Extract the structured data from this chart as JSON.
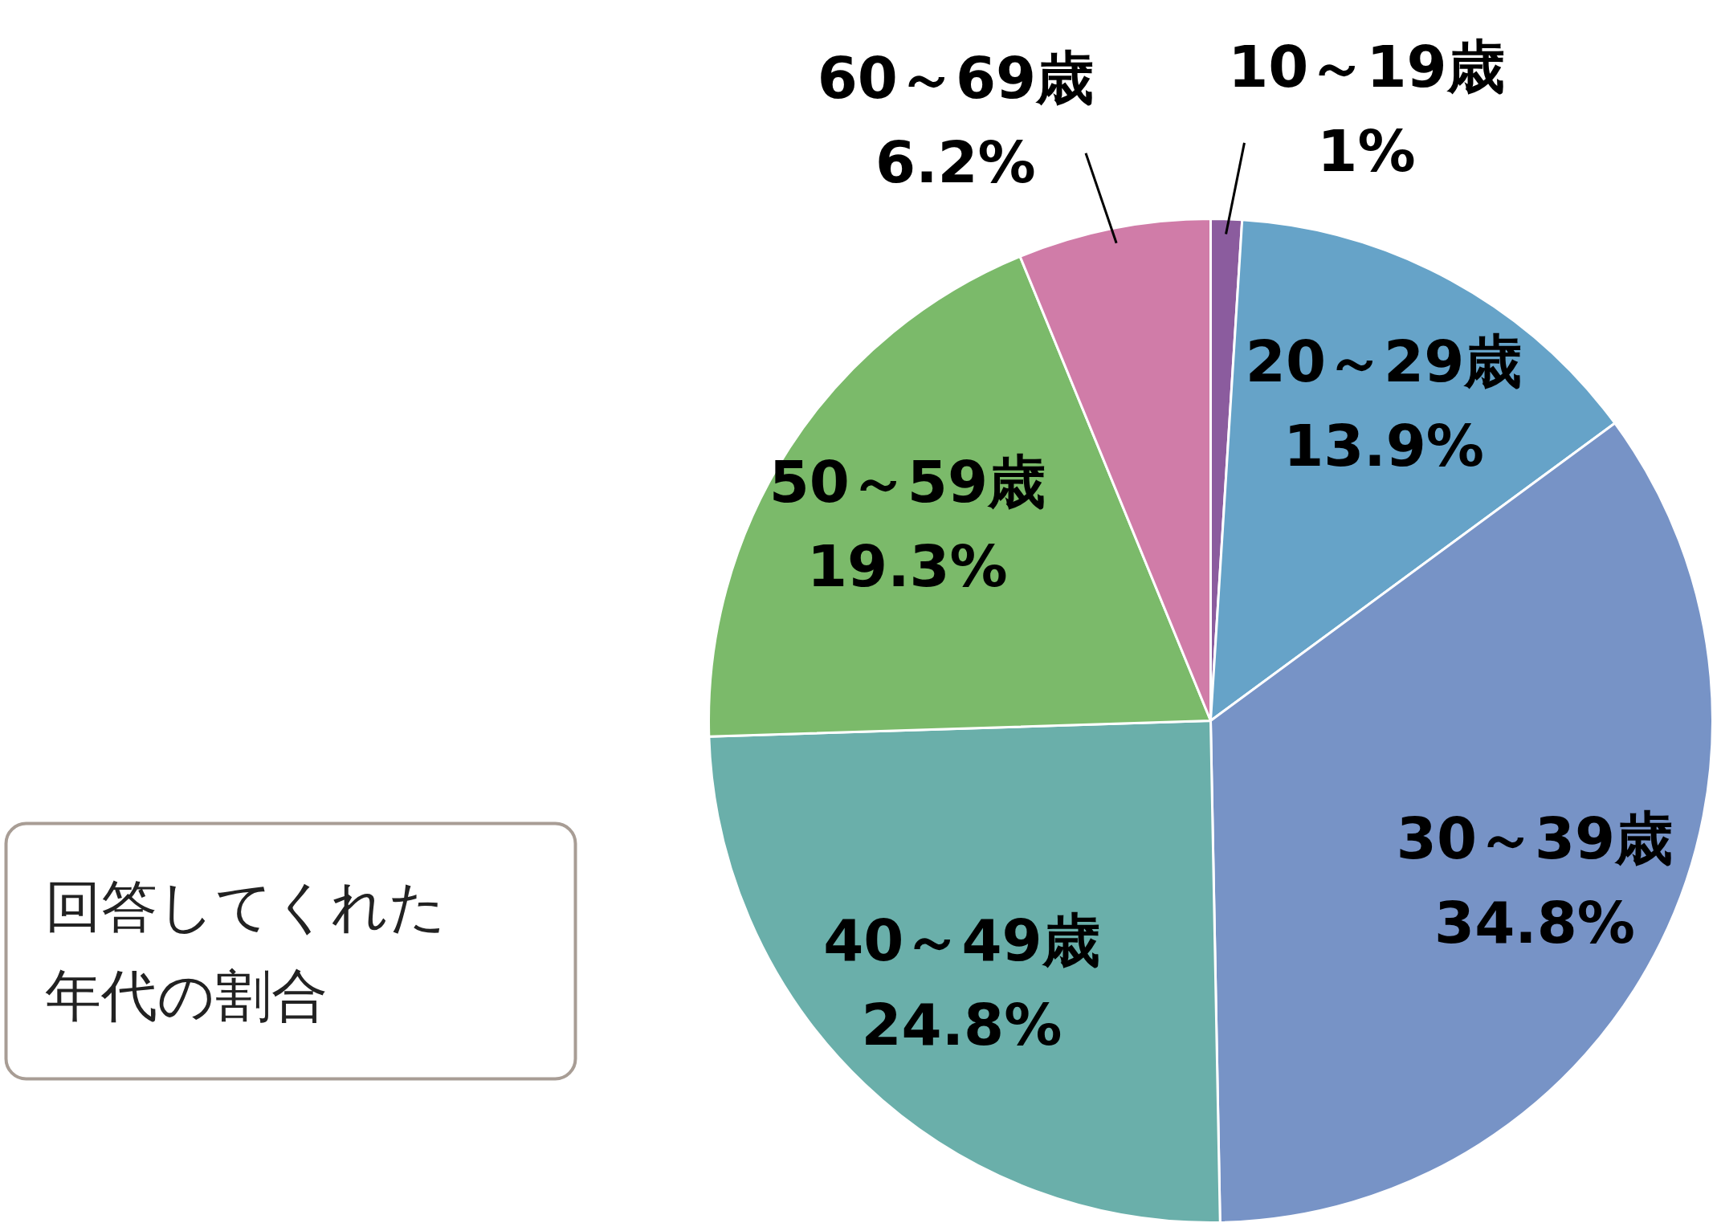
{
  "chart_data": {
    "type": "pie",
    "title": "回答してくれた年代の割合",
    "categories": [
      "10～19歳",
      "20～29歳",
      "30～39歳",
      "40～49歳",
      "50～59歳",
      "60～69歳"
    ],
    "values": [
      1,
      13.9,
      34.8,
      24.8,
      19.3,
      6.2
    ],
    "colors": [
      "#8b5c9e",
      "#66a3c8",
      "#7793c6",
      "#6aafaa",
      "#7bba6a",
      "#d07ca8"
    ],
    "value_labels": [
      "1%",
      "13.9%",
      "34.8%",
      "24.8%",
      "19.3%",
      "6.2%"
    ]
  }
}
